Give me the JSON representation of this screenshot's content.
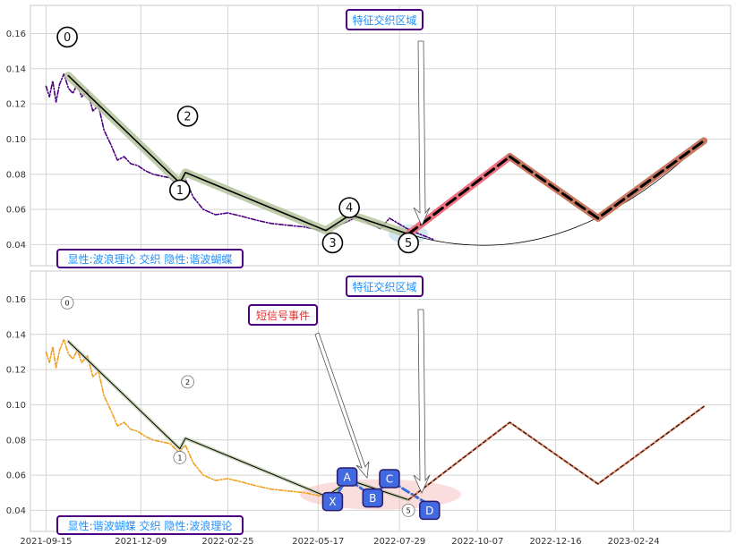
{
  "chart_data": [
    {
      "type": "line",
      "id": "top",
      "xlim": [
        "2021-09-01",
        "2023-05-22"
      ],
      "ylim": [
        0.028,
        0.176
      ],
      "x_ticks": [
        "2021-09-15",
        "2021-12-09",
        "2022-02-25",
        "2022-05-17",
        "2022-07-29",
        "2022-10-07",
        "2022-12-16",
        "2023-02-24"
      ],
      "y_ticks": [
        "0.04",
        "0.06",
        "0.08",
        "0.10",
        "0.12",
        "0.14",
        "0.16"
      ],
      "grid": true,
      "annotation_box_label": "特征交织区域",
      "legend_box_label": "显性:波浪理论 交织 隐性:谐波蝴蝶",
      "wave_labels": [
        {
          "text": "0",
          "x": "2021-10-04",
          "y": 0.158
        },
        {
          "text": "1",
          "x": "2022-01-13",
          "y": 0.071
        },
        {
          "text": "2",
          "x": "2022-01-20",
          "y": 0.113
        },
        {
          "text": "3",
          "x": "2022-05-30",
          "y": 0.041
        },
        {
          "text": "4",
          "x": "2022-06-14",
          "y": 0.061
        },
        {
          "text": "5",
          "x": "2022-08-06",
          "y": 0.041
        }
      ],
      "series": [
        {
          "role": "price",
          "color": "#4b0082",
          "values": [
            [
              "2021-09-15",
              0.13
            ],
            [
              "2021-09-18",
              0.124
            ],
            [
              "2021-09-21",
              0.133
            ],
            [
              "2021-09-24",
              0.121
            ],
            [
              "2021-09-27",
              0.131
            ],
            [
              "2021-10-01",
              0.137
            ],
            [
              "2021-10-05",
              0.129
            ],
            [
              "2021-10-09",
              0.126
            ],
            [
              "2021-10-13",
              0.131
            ],
            [
              "2021-10-17",
              0.124
            ],
            [
              "2021-10-22",
              0.128
            ],
            [
              "2021-10-27",
              0.116
            ],
            [
              "2021-11-01",
              0.119
            ],
            [
              "2021-11-06",
              0.105
            ],
            [
              "2021-11-12",
              0.097
            ],
            [
              "2021-11-18",
              0.088
            ],
            [
              "2021-11-24",
              0.09
            ],
            [
              "2021-11-30",
              0.086
            ],
            [
              "2021-12-06",
              0.085
            ],
            [
              "2021-12-13",
              0.082
            ],
            [
              "2021-12-20",
              0.08
            ],
            [
              "2021-12-27",
              0.079
            ],
            [
              "2022-01-04",
              0.078
            ],
            [
              "2022-01-12",
              0.073
            ],
            [
              "2022-01-18",
              0.077
            ],
            [
              "2022-01-25",
              0.067
            ],
            [
              "2022-02-03",
              0.06
            ],
            [
              "2022-02-14",
              0.057
            ],
            [
              "2022-02-25",
              0.058
            ],
            [
              "2022-03-10",
              0.056
            ],
            [
              "2022-03-22",
              0.054
            ],
            [
              "2022-04-05",
              0.052
            ],
            [
              "2022-04-20",
              0.051
            ],
            [
              "2022-05-05",
              0.05
            ],
            [
              "2022-05-20",
              0.048
            ],
            [
              "2022-06-01",
              0.05
            ],
            [
              "2022-06-12",
              0.053
            ],
            [
              "2022-06-22",
              0.056
            ],
            [
              "2022-07-02",
              0.052
            ],
            [
              "2022-07-12",
              0.049
            ],
            [
              "2022-07-20",
              0.055
            ],
            [
              "2022-07-28",
              0.052
            ],
            [
              "2022-08-05",
              0.049
            ],
            [
              "2022-08-12",
              0.047
            ],
            [
              "2022-08-20",
              0.045
            ],
            [
              "2022-08-28",
              0.043
            ]
          ]
        },
        {
          "role": "wave",
          "color": "#000000",
          "values": [
            [
              "2021-10-05",
              0.136
            ],
            [
              "2022-01-13",
              0.075
            ],
            [
              "2022-01-18",
              0.081
            ],
            [
              "2022-05-24",
              0.048
            ],
            [
              "2022-06-15",
              0.057
            ],
            [
              "2022-08-06",
              0.046
            ]
          ]
        },
        {
          "role": "projection-red",
          "color": "#f07080",
          "values": [
            [
              "2022-08-06",
              0.046
            ],
            [
              "2022-11-05",
              0.09
            ]
          ]
        },
        {
          "role": "projection-brown",
          "color": "#c87860",
          "values": [
            [
              "2022-11-05",
              0.09
            ],
            [
              "2023-01-23",
              0.055
            ],
            [
              "2023-04-28",
              0.099
            ]
          ]
        }
      ]
    },
    {
      "type": "line",
      "id": "bottom",
      "xlim": [
        "2021-09-01",
        "2023-05-22"
      ],
      "ylim": [
        0.028,
        0.176
      ],
      "x_ticks": [
        "2021-09-15",
        "2021-12-09",
        "2022-02-25",
        "2022-05-17",
        "2022-07-29",
        "2022-10-07",
        "2022-12-16",
        "2023-02-24"
      ],
      "y_ticks": [
        "0.04",
        "0.06",
        "0.08",
        "0.10",
        "0.12",
        "0.14",
        "0.16"
      ],
      "grid": true,
      "annotation_box_label": "特征交织区域",
      "signal_box_label": "短信号事件",
      "legend_box_label": "显性:谐波蝴蝶 交织 隐性:波浪理论",
      "wave_labels": [
        {
          "text": "0",
          "x": "2021-10-04",
          "y": 0.158
        },
        {
          "text": "1",
          "x": "2022-01-13",
          "y": 0.07
        },
        {
          "text": "2",
          "x": "2022-01-20",
          "y": 0.113
        },
        {
          "text": "5",
          "x": "2022-08-06",
          "y": 0.04
        }
      ],
      "xabcd_labels": [
        {
          "text": "X",
          "x": "2022-05-30",
          "y": 0.045
        },
        {
          "text": "A",
          "x": "2022-06-12",
          "y": 0.059
        },
        {
          "text": "B",
          "x": "2022-07-05",
          "y": 0.047
        },
        {
          "text": "C",
          "x": "2022-07-20",
          "y": 0.058
        },
        {
          "text": "D",
          "x": "2022-08-25",
          "y": 0.04
        }
      ],
      "series": [
        {
          "role": "price",
          "color": "#f0a020",
          "values": [
            [
              "2021-09-15",
              0.13
            ],
            [
              "2021-09-18",
              0.124
            ],
            [
              "2021-09-21",
              0.133
            ],
            [
              "2021-09-24",
              0.121
            ],
            [
              "2021-09-27",
              0.131
            ],
            [
              "2021-10-01",
              0.137
            ],
            [
              "2021-10-05",
              0.129
            ],
            [
              "2021-10-09",
              0.126
            ],
            [
              "2021-10-13",
              0.131
            ],
            [
              "2021-10-17",
              0.124
            ],
            [
              "2021-10-22",
              0.128
            ],
            [
              "2021-10-27",
              0.116
            ],
            [
              "2021-11-01",
              0.119
            ],
            [
              "2021-11-06",
              0.105
            ],
            [
              "2021-11-12",
              0.097
            ],
            [
              "2021-11-18",
              0.088
            ],
            [
              "2021-11-24",
              0.09
            ],
            [
              "2021-11-30",
              0.086
            ],
            [
              "2021-12-06",
              0.085
            ],
            [
              "2021-12-13",
              0.082
            ],
            [
              "2021-12-20",
              0.08
            ],
            [
              "2021-12-27",
              0.079
            ],
            [
              "2022-01-04",
              0.078
            ],
            [
              "2022-01-12",
              0.073
            ],
            [
              "2022-01-18",
              0.077
            ],
            [
              "2022-01-25",
              0.067
            ],
            [
              "2022-02-03",
              0.06
            ],
            [
              "2022-02-14",
              0.057
            ],
            [
              "2022-02-25",
              0.058
            ],
            [
              "2022-03-10",
              0.056
            ],
            [
              "2022-03-22",
              0.054
            ],
            [
              "2022-04-05",
              0.052
            ],
            [
              "2022-04-20",
              0.051
            ],
            [
              "2022-05-05",
              0.05
            ],
            [
              "2022-05-20",
              0.048
            ]
          ]
        },
        {
          "role": "wave",
          "color": "#000000",
          "values": [
            [
              "2021-10-05",
              0.136
            ],
            [
              "2022-01-13",
              0.075
            ],
            [
              "2022-01-18",
              0.081
            ],
            [
              "2022-05-24",
              0.048
            ],
            [
              "2022-06-15",
              0.057
            ],
            [
              "2022-08-06",
              0.046
            ]
          ]
        },
        {
          "role": "xabcd",
          "color": "#3a6fd8",
          "values": [
            [
              "2022-05-30",
              0.045
            ],
            [
              "2022-06-12",
              0.058
            ],
            [
              "2022-07-05",
              0.048
            ],
            [
              "2022-07-20",
              0.057
            ],
            [
              "2022-08-25",
              0.043
            ]
          ]
        },
        {
          "role": "projection",
          "color": "#e89070",
          "values": [
            [
              "2022-08-06",
              0.046
            ],
            [
              "2022-11-05",
              0.09
            ],
            [
              "2023-01-23",
              0.055
            ],
            [
              "2023-04-28",
              0.099
            ]
          ]
        }
      ]
    }
  ]
}
